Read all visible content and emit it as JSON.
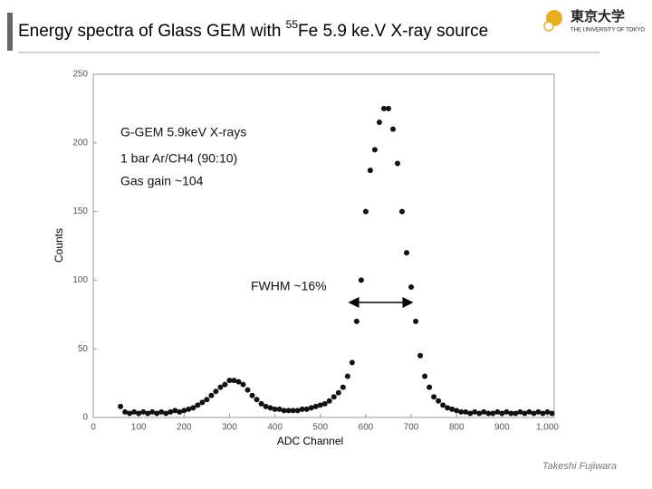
{
  "slide": {
    "title": [
      "Energy spectra of Glass GEM with ",
      "55",
      "Fe 5.9 ke.V X-ray source"
    ],
    "logo": {
      "kanji": "東京大学",
      "english": "THE UNIVERSITY OF TOKYO"
    },
    "footer": "Takeshi Fujiwara"
  },
  "chart_data": {
    "type": "scatter",
    "color": "#111111",
    "xlabel": "ADC Channel",
    "ylabel": "Counts",
    "annotations": [
      "G-GEM 5.9keV X-rays",
      "1 bar Ar/CH4 (90:10)",
      "Gas gain ~104",
      "FWHM ~16%"
    ],
    "xlim": [
      0,
      1015
    ],
    "ylim": [
      0,
      250
    ],
    "xticks": [
      0,
      100,
      200,
      300,
      400,
      500,
      600,
      700,
      800,
      900,
      {
        "value": 1000,
        "label": "1,000"
      }
    ],
    "yticks": [
      0,
      50,
      100,
      150,
      200,
      250
    ],
    "grid": false,
    "x": [
      60,
      70,
      80,
      90,
      100,
      110,
      120,
      130,
      140,
      150,
      160,
      170,
      180,
      190,
      200,
      210,
      220,
      230,
      240,
      250,
      260,
      270,
      280,
      290,
      300,
      310,
      320,
      330,
      340,
      350,
      360,
      370,
      380,
      390,
      400,
      410,
      420,
      430,
      440,
      450,
      460,
      470,
      480,
      490,
      500,
      510,
      520,
      530,
      540,
      550,
      560,
      570,
      580,
      590,
      600,
      610,
      620,
      630,
      640,
      650,
      660,
      670,
      680,
      690,
      700,
      710,
      720,
      730,
      740,
      750,
      760,
      770,
      780,
      790,
      800,
      810,
      820,
      830,
      840,
      850,
      860,
      870,
      880,
      890,
      900,
      910,
      920,
      930,
      940,
      950,
      960,
      970,
      980,
      990,
      1000,
      1010
    ],
    "y": [
      8,
      4,
      3,
      4,
      3,
      4,
      3,
      4,
      3,
      4,
      3,
      4,
      5,
      4,
      5,
      6,
      7,
      9,
      11,
      13,
      16,
      19,
      22,
      24,
      27,
      27,
      26,
      24,
      20,
      16,
      13,
      10,
      8,
      7,
      6,
      6,
      5,
      5,
      5,
      5,
      6,
      6,
      7,
      8,
      9,
      10,
      12,
      15,
      18,
      22,
      30,
      40,
      70,
      100,
      150,
      180,
      195,
      215,
      225,
      225,
      210,
      185,
      150,
      120,
      95,
      70,
      45,
      30,
      22,
      15,
      12,
      9,
      7,
      6,
      5,
      4,
      4,
      3,
      4,
      3,
      4,
      3,
      3,
      4,
      3,
      4,
      3,
      3,
      4,
      3,
      4,
      3,
      4,
      3,
      4,
      3
    ]
  }
}
